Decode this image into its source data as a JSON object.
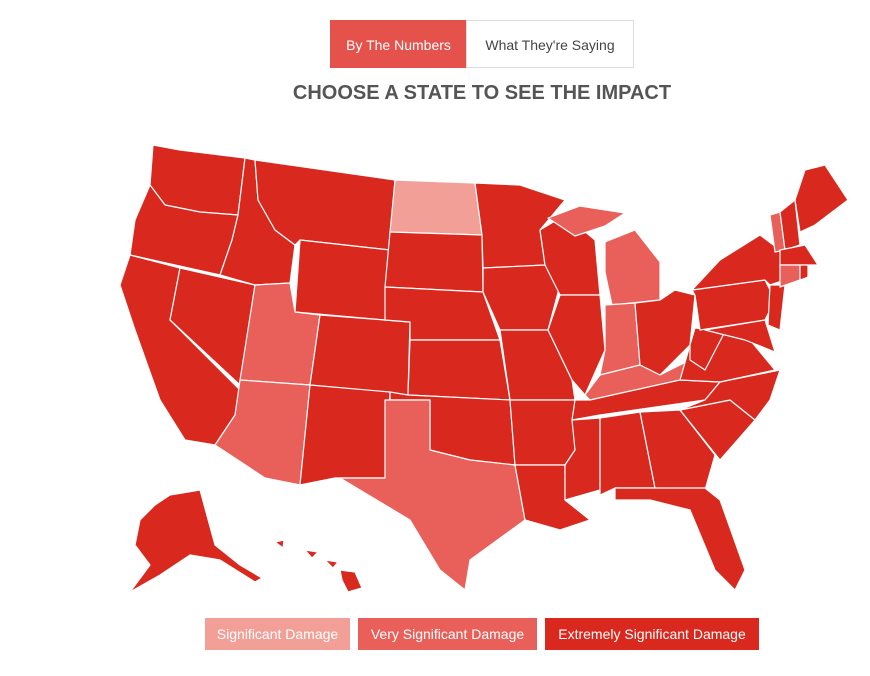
{
  "tabs": [
    {
      "label": "By The Numbers"
    },
    {
      "label": "What They're Saying"
    }
  ],
  "active_tab": 0,
  "title": "CHOOSE A STATE TO SEE THE IMPACT",
  "legend": [
    {
      "label": "Significant Damage",
      "color": "#f2a097"
    },
    {
      "label": "Very Significant Damage",
      "color": "#e9605a"
    },
    {
      "label": "Extremely Significant Damage",
      "color": "#d9281e"
    }
  ],
  "active_color": "#e5524c"
}
